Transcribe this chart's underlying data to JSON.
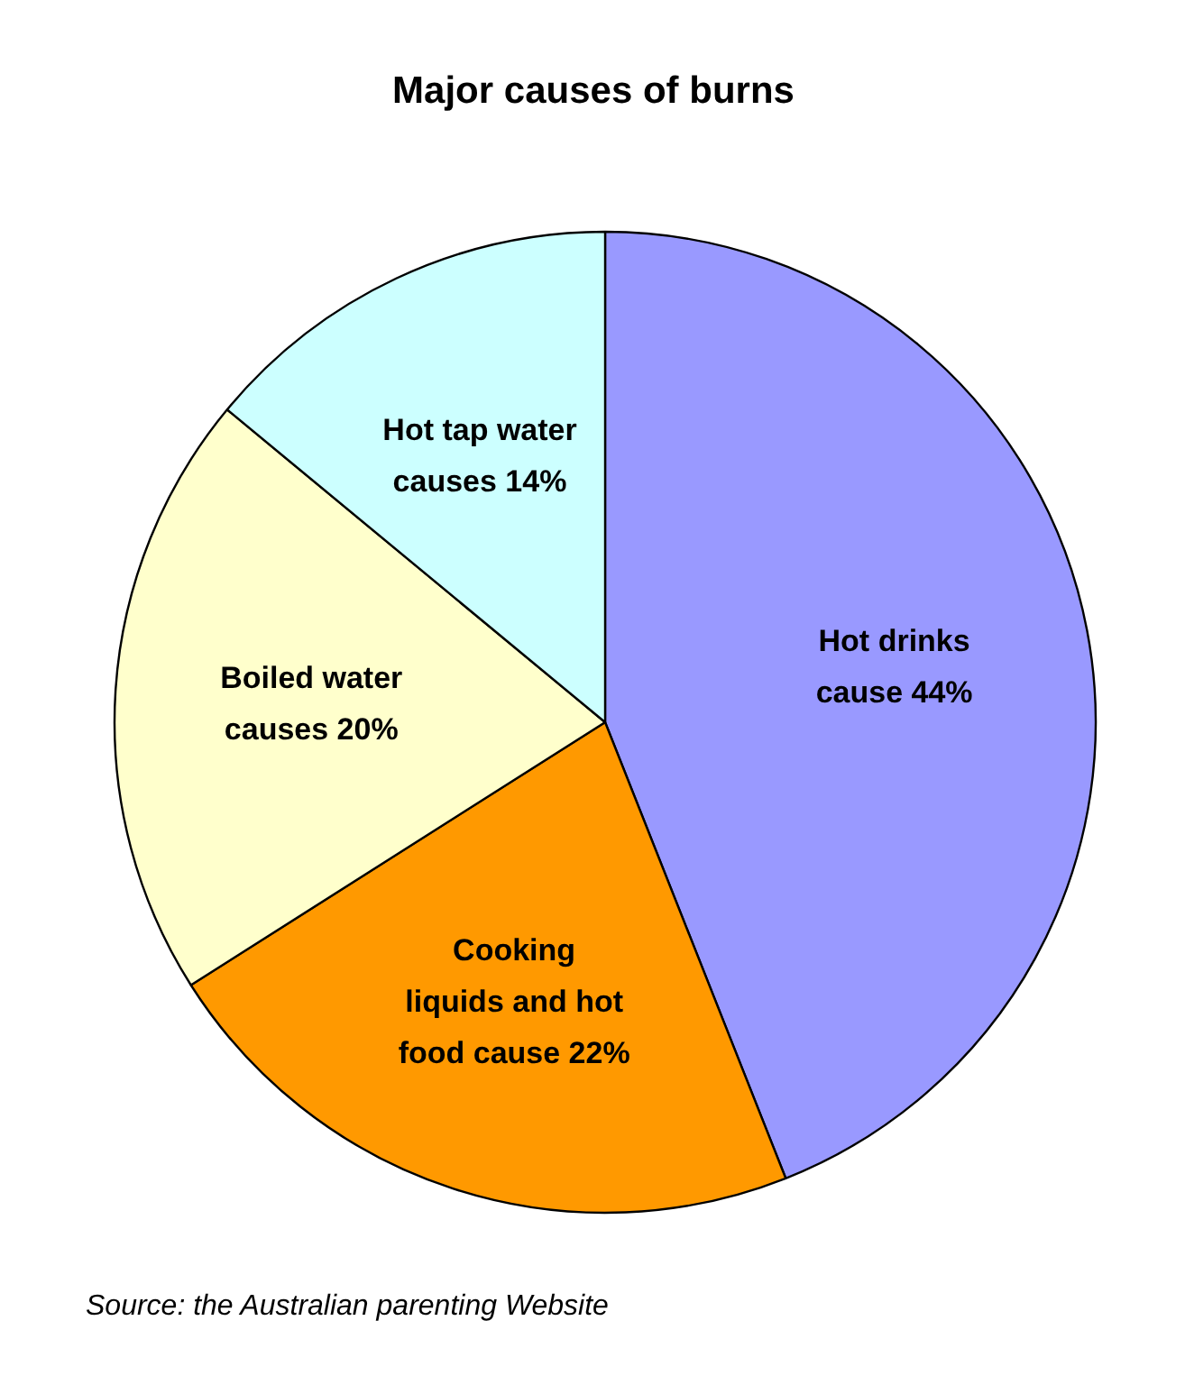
{
  "chart_data": {
    "type": "pie",
    "title": "Major causes of burns",
    "categories": [
      "Hot drinks\ncause 44%",
      "Cooking\nliquids and hot\nfood cause 22%",
      "Boiled water\ncauses 20%",
      "Hot tap water\ncauses 14%"
    ],
    "values": [
      44,
      22,
      20,
      14
    ],
    "colors": [
      "#9999ff",
      "#ff9900",
      "#ffffcc",
      "#ccffff"
    ],
    "legend": false,
    "annotations": [
      "Source: the Australian parenting Website"
    ]
  }
}
